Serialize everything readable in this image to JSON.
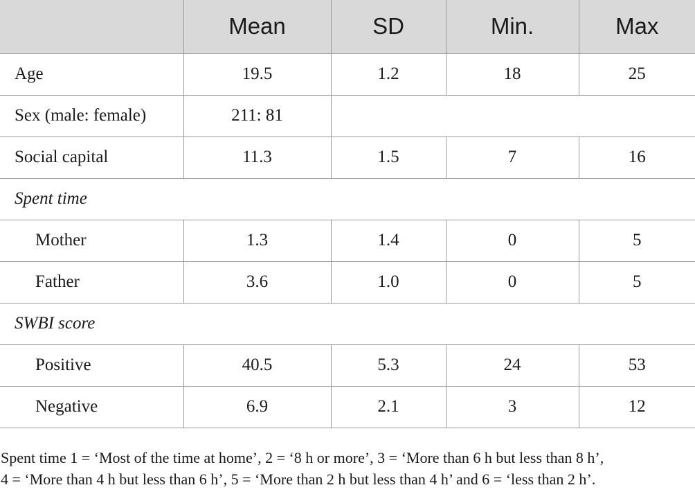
{
  "table": {
    "headers": [
      "",
      "Mean",
      "SD",
      "Min.",
      "Max"
    ],
    "rows": [
      {
        "label": "Age",
        "mean": "19.5",
        "sd": "1.2",
        "min": "18",
        "max": "25"
      },
      {
        "label": "Sex (male: female)",
        "mean": "211: 81"
      },
      {
        "label": "Social capital",
        "mean": "11.3",
        "sd": "1.5",
        "min": "7",
        "max": "16"
      },
      {
        "section": "Spent time"
      },
      {
        "label": "Mother",
        "mean": "1.3",
        "sd": "1.4",
        "min": "0",
        "max": "5"
      },
      {
        "label": "Father",
        "mean": "3.6",
        "sd": "1.0",
        "min": "0",
        "max": "5"
      },
      {
        "section": "SWBI score"
      },
      {
        "label": "Positive",
        "mean": "40.5",
        "sd": "5.3",
        "min": "24",
        "max": "53"
      },
      {
        "label": "Negative",
        "mean": "6.9",
        "sd": "2.1",
        "min": "3",
        "max": "12"
      }
    ]
  },
  "footnote": {
    "line1": "Spent time 1 = ‘Most of the time at home’, 2 = ‘8 h or more’, 3 = ‘More than 6 h but less than 8 h’,",
    "line2": "4 = ‘More than 4 h but less than 6 h’, 5 = ‘More than 2 h but less than 4 h’ and 6 = ‘less than 2 h’."
  }
}
